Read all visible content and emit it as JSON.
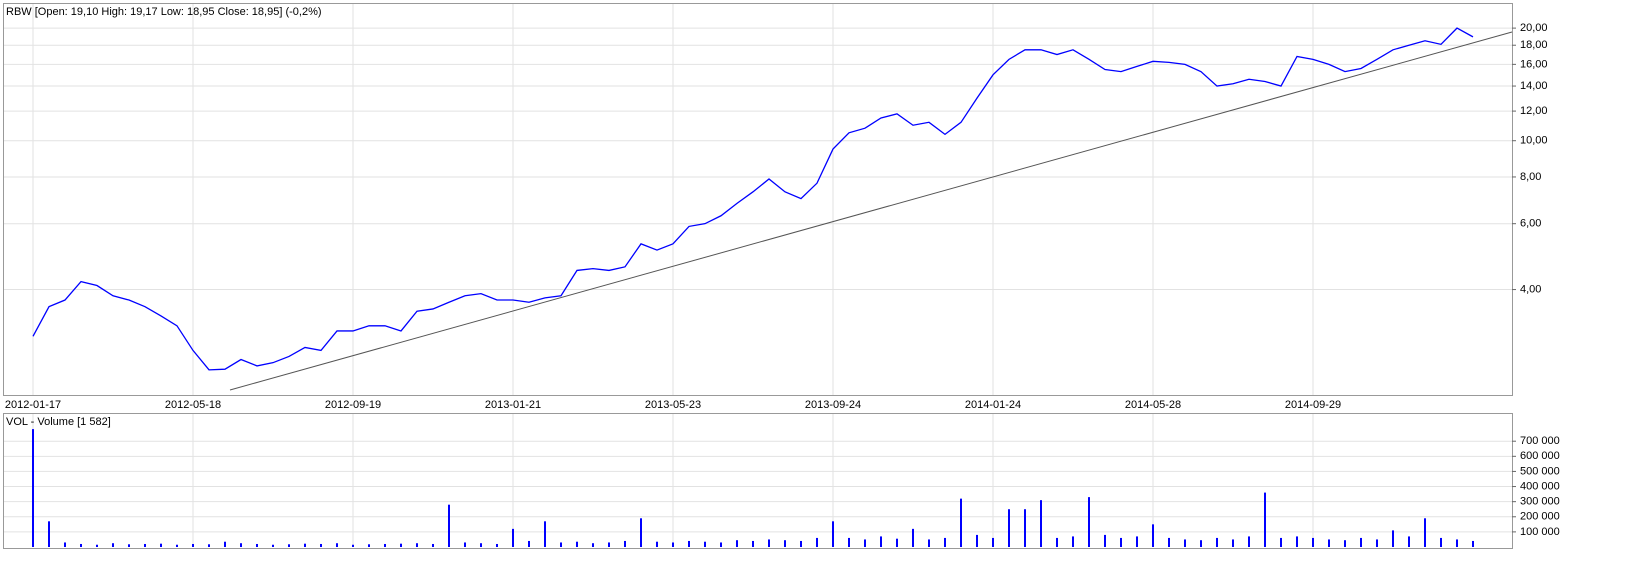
{
  "chart_data": [
    {
      "type": "line",
      "title": "RBW [Open: 19,10  High: 19,17  Low: 18,95  Close: 18,95] (-0,2%)",
      "color": "#0000ff",
      "log_scale": true,
      "grid": true,
      "categories": [
        "2012-01-17",
        null,
        null,
        null,
        null,
        null,
        null,
        null,
        null,
        null,
        "2012-05-18",
        null,
        null,
        null,
        null,
        null,
        null,
        null,
        null,
        null,
        "2012-09-19",
        null,
        null,
        null,
        null,
        null,
        null,
        null,
        null,
        null,
        "2013-01-21",
        null,
        null,
        null,
        null,
        null,
        null,
        null,
        null,
        null,
        "2013-05-23",
        null,
        null,
        null,
        null,
        null,
        null,
        null,
        null,
        null,
        "2013-09-24",
        null,
        null,
        null,
        null,
        null,
        null,
        null,
        null,
        null,
        "2014-01-24",
        null,
        null,
        null,
        null,
        null,
        null,
        null,
        null,
        null,
        "2014-05-28",
        null,
        null,
        null,
        null,
        null,
        null,
        null,
        null,
        null,
        "2014-09-29",
        null,
        null,
        null,
        null,
        null,
        null,
        null,
        null,
        null,
        null
      ],
      "values": [
        3.0,
        3.6,
        3.75,
        4.2,
        4.1,
        3.85,
        3.75,
        3.6,
        3.4,
        3.2,
        2.75,
        2.44,
        2.45,
        2.6,
        2.5,
        2.55,
        2.65,
        2.8,
        2.75,
        3.1,
        3.1,
        3.2,
        3.2,
        3.1,
        3.5,
        3.55,
        3.7,
        3.85,
        3.9,
        3.75,
        3.75,
        3.7,
        3.8,
        3.85,
        4.5,
        4.55,
        4.5,
        4.6,
        5.3,
        5.1,
        5.3,
        5.9,
        6.0,
        6.3,
        6.8,
        7.3,
        7.9,
        7.3,
        7.0,
        7.7,
        9.5,
        10.5,
        10.8,
        11.5,
        11.8,
        11.0,
        11.2,
        10.4,
        11.2,
        13.0,
        15.0,
        16.5,
        17.5,
        17.5,
        17.0,
        17.5,
        16.5,
        15.5,
        15.3,
        15.8,
        16.3,
        16.2,
        16.0,
        15.3,
        14.0,
        14.2,
        14.6,
        14.4,
        14.0,
        16.8,
        16.5,
        16.0,
        15.3,
        15.6,
        16.5,
        17.5,
        18.0,
        18.5,
        18.1,
        20.0,
        18.95
      ],
      "ylim": [
        2.09,
        23.2
      ],
      "yticks": [
        {
          "value": 4,
          "label": "4,00"
        },
        {
          "value": 6,
          "label": "6,00"
        },
        {
          "value": 8,
          "label": "8,00"
        },
        {
          "value": 10,
          "label": "10,00"
        },
        {
          "value": 12,
          "label": "12,00"
        },
        {
          "value": 14,
          "label": "14,00"
        },
        {
          "value": 16,
          "label": "16,00"
        },
        {
          "value": 18,
          "label": "18,00"
        },
        {
          "value": 20,
          "label": "20,00"
        }
      ]
    },
    {
      "type": "bar",
      "title": "VOL - Volume [1 582]",
      "color": "#0000ff",
      "grid": true,
      "values": [
        780000,
        170000,
        30000,
        20000,
        15000,
        25000,
        18000,
        20000,
        22000,
        15000,
        20000,
        18000,
        35000,
        25000,
        20000,
        15000,
        18000,
        22000,
        20000,
        25000,
        15000,
        18000,
        20000,
        22000,
        25000,
        20000,
        280000,
        30000,
        25000,
        20000,
        120000,
        40000,
        170000,
        30000,
        35000,
        25000,
        30000,
        40000,
        190000,
        35000,
        30000,
        40000,
        35000,
        30000,
        45000,
        40000,
        50000,
        45000,
        40000,
        60000,
        170000,
        60000,
        50000,
        70000,
        55000,
        120000,
        50000,
        60000,
        320000,
        80000,
        60000,
        250000,
        250000,
        310000,
        60000,
        70000,
        330000,
        80000,
        60000,
        70000,
        150000,
        60000,
        50000,
        45000,
        60000,
        50000,
        70000,
        360000,
        60000,
        70000,
        60000,
        50000,
        45000,
        60000,
        50000,
        110000,
        70000,
        190000,
        60000,
        50000,
        40000
      ],
      "ylim": [
        0,
        880000
      ],
      "yticks": [
        {
          "value": 100000,
          "label": "100 000"
        },
        {
          "value": 200000,
          "label": "200 000"
        },
        {
          "value": 300000,
          "label": "300 000"
        },
        {
          "value": 400000,
          "label": "400 000"
        },
        {
          "value": 500000,
          "label": "500 000"
        },
        {
          "value": 600000,
          "label": "600 000"
        },
        {
          "value": 700000,
          "label": "700 000"
        }
      ]
    }
  ]
}
